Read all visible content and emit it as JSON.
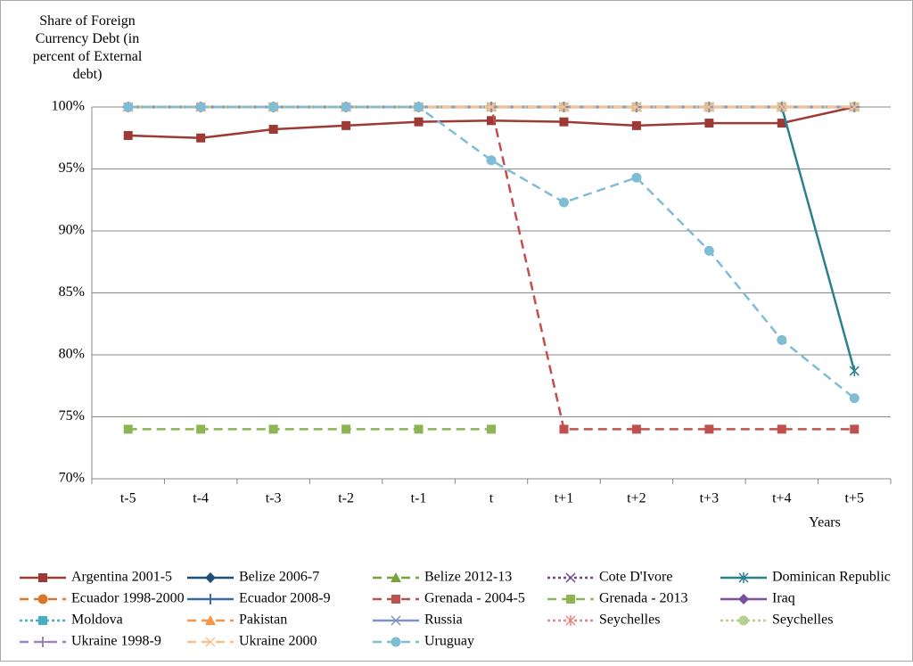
{
  "chart_data": {
    "type": "line",
    "y_label": "Share of Foreign Currency Debt (in percent of External debt)",
    "x_label": "Years",
    "categories": [
      "t-5",
      "t-4",
      "t-3",
      "t-2",
      "t-1",
      "t",
      "t+1",
      "t+2",
      "t+3",
      "t+4",
      "t+5"
    ],
    "ylim": [
      70,
      100
    ],
    "yticks": [
      {
        "value": 70,
        "label": "70%"
      },
      {
        "value": 75,
        "label": "75%"
      },
      {
        "value": 80,
        "label": "80%"
      },
      {
        "value": 85,
        "label": "85%"
      },
      {
        "value": 90,
        "label": "90%"
      },
      {
        "value": 95,
        "label": "95%"
      },
      {
        "value": 100,
        "label": "100%"
      }
    ],
    "grid": true,
    "legend": "bottom",
    "series": [
      {
        "name": "Argentina 2001-5",
        "color": "#9e3a35",
        "marker": "square",
        "dash": "solid",
        "values": [
          97.7,
          97.5,
          98.2,
          98.5,
          98.8,
          98.9,
          98.8,
          98.5,
          98.7,
          98.7,
          100
        ]
      },
      {
        "name": "Belize 2006-7",
        "color": "#1f4e79",
        "marker": "diamond",
        "dash": "solid",
        "values": [
          100,
          100,
          100,
          100,
          100,
          100,
          100,
          100,
          100,
          100,
          100
        ]
      },
      {
        "name": "Belize 2012-13",
        "color": "#77a33b",
        "marker": "triangle",
        "dash": "dash",
        "values": [
          100,
          100,
          100,
          100,
          100,
          100,
          100,
          100,
          100,
          100,
          100
        ]
      },
      {
        "name": "Cote D'Ivore",
        "color": "#6a4a8c",
        "marker": "x",
        "dash": "dot",
        "values": [
          100,
          100,
          100,
          100,
          100,
          100,
          100,
          100,
          100,
          100,
          100
        ]
      },
      {
        "name": "Dominican Republic",
        "color": "#2b7f8e",
        "marker": "star",
        "dash": "solid",
        "values": [
          100,
          100,
          100,
          100,
          100,
          100,
          100,
          100,
          100,
          100,
          78.7
        ]
      },
      {
        "name": "Ecuador 1998-2000",
        "color": "#d9782d",
        "marker": "circle",
        "dash": "dash",
        "values": [
          100,
          100,
          100,
          100,
          100,
          100,
          100,
          100,
          100,
          100,
          100
        ]
      },
      {
        "name": "Ecuador 2008-9",
        "color": "#3a6aa8",
        "marker": "plus",
        "dash": "solid",
        "values": [
          100,
          100,
          100,
          100,
          100,
          100,
          100,
          100,
          100,
          100,
          100
        ]
      },
      {
        "name": "Grenada - 2004-5",
        "color": "#c0504d",
        "marker": "square",
        "dash": "dash",
        "values": [
          100,
          100,
          100,
          100,
          100,
          100,
          74,
          74,
          74,
          74,
          74
        ]
      },
      {
        "name": "Grenada - 2013",
        "color": "#8db554",
        "marker": "square",
        "dash": "dash",
        "values": [
          74,
          74,
          74,
          74,
          74,
          74,
          null,
          null,
          null,
          null,
          null
        ]
      },
      {
        "name": "Iraq",
        "color": "#7a4f9e",
        "marker": "diamond",
        "dash": "solid",
        "values": [
          100,
          100,
          100,
          100,
          100,
          100,
          100,
          100,
          100,
          100,
          100
        ]
      },
      {
        "name": "Moldova",
        "color": "#4bacc6",
        "marker": "square",
        "dash": "dot",
        "values": [
          100,
          100,
          100,
          100,
          100,
          100,
          100,
          100,
          100,
          100,
          100
        ]
      },
      {
        "name": "Pakistan",
        "color": "#f79646",
        "marker": "triangle",
        "dash": "dash",
        "values": [
          100,
          100,
          100,
          100,
          100,
          100,
          100,
          100,
          100,
          100,
          100
        ]
      },
      {
        "name": "Russia",
        "color": "#7f93c4",
        "marker": "x",
        "dash": "solid",
        "values": [
          100,
          100,
          100,
          100,
          100,
          100,
          100,
          100,
          100,
          100,
          100
        ]
      },
      {
        "name": "Seychelles",
        "color": "#e6857f",
        "marker": "star",
        "dash": "dot",
        "values": [
          100,
          100,
          100,
          100,
          100,
          100,
          100,
          100,
          100,
          100,
          100
        ]
      },
      {
        "name": "Seychelles",
        "color": "#b5d08a",
        "marker": "circle",
        "dash": "dot",
        "values": [
          100,
          100,
          100,
          100,
          100,
          100,
          100,
          100,
          100,
          100,
          100
        ]
      },
      {
        "name": "Ukraine 1998-9",
        "color": "#9a83c0",
        "marker": "plus",
        "dash": "dash",
        "values": [
          100,
          100,
          100,
          100,
          100,
          100,
          100,
          100,
          100,
          100,
          100
        ]
      },
      {
        "name": "Ukraine 2000",
        "color": "#fac08f",
        "marker": "x",
        "dash": "dash",
        "values": [
          100,
          100,
          100,
          100,
          100,
          100,
          100,
          100,
          100,
          100,
          100
        ]
      },
      {
        "name": "Uruguay",
        "color": "#7fbcd6",
        "marker": "circle",
        "dash": "dash",
        "values": [
          100,
          100,
          100,
          100,
          100,
          95.7,
          92.3,
          94.3,
          88.4,
          81.2,
          76.5
        ]
      }
    ]
  }
}
